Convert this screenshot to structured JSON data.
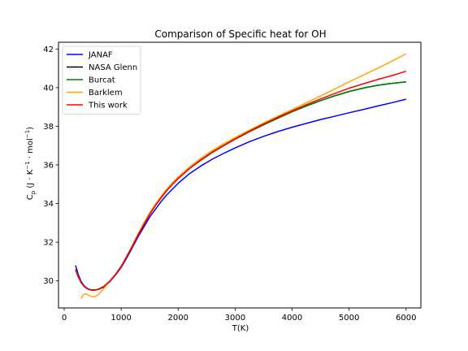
{
  "chart_data": {
    "type": "line",
    "title": "Comparison of Specific heat for OH",
    "xlabel": "T(K)",
    "ylabel": "C_p (J·K⁻¹·mol⁻¹)",
    "ylabel_parts": {
      "main": "C",
      "sub": "p",
      "unit": "(J · K",
      "sup1": "−1",
      "mid": " · mol",
      "sup2": "−1",
      "end": ")"
    },
    "xlim": [
      -100,
      6260
    ],
    "ylim": [
      28.6,
      42.35
    ],
    "xticks": [
      0,
      1000,
      2000,
      3000,
      4000,
      5000,
      6000
    ],
    "yticks": [
      30,
      32,
      34,
      36,
      38,
      40,
      42
    ],
    "grid": false,
    "legend_position": "top-left",
    "series": [
      {
        "name": "JANAF",
        "color": "#0000ff",
        "x": [
          200,
          250,
          300,
          350,
          400,
          450,
          500,
          550,
          600,
          700,
          800,
          900,
          1000,
          1100,
          1200,
          1300,
          1400,
          1500,
          1600,
          1700,
          1800,
          1900,
          2000,
          2200,
          2400,
          2600,
          2800,
          3000,
          3250,
          3500,
          3750,
          4000,
          4250,
          4500,
          4750,
          5000,
          5250,
          5500,
          5750,
          6000
        ],
        "y": [
          30.8,
          30.3,
          29.95,
          29.75,
          29.62,
          29.55,
          29.52,
          29.53,
          29.56,
          29.68,
          29.95,
          30.3,
          30.7,
          31.2,
          31.75,
          32.3,
          32.8,
          33.3,
          33.7,
          34.1,
          34.45,
          34.75,
          35.05,
          35.55,
          35.95,
          36.3,
          36.6,
          36.88,
          37.2,
          37.48,
          37.73,
          37.95,
          38.15,
          38.35,
          38.52,
          38.7,
          38.87,
          39.05,
          39.22,
          39.4
        ]
      },
      {
        "name": "NASA Glenn",
        "color": "#000000",
        "x": [
          200,
          250,
          300,
          350,
          400,
          450,
          500,
          550,
          600,
          700,
          800,
          900,
          1000,
          1100,
          1200,
          1300,
          1400,
          1500,
          1600,
          1700,
          1800,
          1900,
          2000,
          2200,
          2400,
          2600,
          2800,
          3000,
          3250,
          3500,
          3750,
          4000,
          4250,
          4500,
          4750,
          5000,
          5250,
          5500,
          5750,
          6000
        ],
        "y": [
          30.6,
          30.2,
          29.9,
          29.72,
          29.6,
          29.54,
          29.52,
          29.53,
          29.57,
          29.72,
          29.98,
          30.33,
          30.75,
          31.27,
          31.82,
          32.4,
          32.93,
          33.45,
          33.9,
          34.3,
          34.68,
          35.0,
          35.3,
          35.82,
          36.25,
          36.65,
          37.0,
          37.33,
          37.72,
          38.08,
          38.42,
          38.75,
          39.05,
          39.33,
          39.58,
          39.8,
          39.98,
          40.12,
          40.22,
          40.3
        ]
      },
      {
        "name": "Burcat",
        "color": "#008000",
        "x": [
          200,
          250,
          300,
          350,
          400,
          450,
          500,
          550,
          600,
          700,
          800,
          900,
          1000,
          1100,
          1200,
          1300,
          1400,
          1500,
          1600,
          1700,
          1800,
          1900,
          2000,
          2200,
          2400,
          2600,
          2800,
          3000,
          3250,
          3500,
          3750,
          4000,
          4250,
          4500,
          4750,
          5000,
          5250,
          5500,
          5750,
          6000
        ],
        "y": [
          30.6,
          30.2,
          29.9,
          29.72,
          29.6,
          29.54,
          29.52,
          29.53,
          29.57,
          29.72,
          29.98,
          30.33,
          30.75,
          31.27,
          31.82,
          32.4,
          32.93,
          33.45,
          33.9,
          34.3,
          34.68,
          35.0,
          35.3,
          35.82,
          36.25,
          36.65,
          37.0,
          37.33,
          37.72,
          38.08,
          38.42,
          38.75,
          39.05,
          39.33,
          39.58,
          39.8,
          39.98,
          40.12,
          40.22,
          40.3
        ]
      },
      {
        "name": "Barklem",
        "color": "#ffa500",
        "x": [
          300,
          325,
          350,
          375,
          400,
          450,
          500,
          550,
          600,
          650,
          700,
          800,
          900,
          1000,
          1100,
          1200,
          1300,
          1400,
          1500,
          1600,
          1700,
          1800,
          1900,
          2000,
          2200,
          2400,
          2600,
          2800,
          3000,
          3250,
          3500,
          3750,
          4000,
          4250,
          4500,
          4750,
          5000,
          5250,
          5500,
          5750,
          6000
        ],
        "y": [
          29.1,
          29.25,
          29.32,
          29.33,
          29.3,
          29.22,
          29.18,
          29.2,
          29.3,
          29.45,
          29.62,
          29.97,
          30.35,
          30.77,
          31.3,
          31.87,
          32.45,
          33.0,
          33.52,
          33.97,
          34.38,
          34.75,
          35.08,
          35.38,
          35.9,
          36.35,
          36.75,
          37.1,
          37.42,
          37.8,
          38.17,
          38.52,
          38.87,
          39.22,
          39.57,
          39.93,
          40.3,
          40.65,
          41.0,
          41.37,
          41.75
        ]
      },
      {
        "name": "This work",
        "color": "#ff0000",
        "x": [
          200,
          250,
          300,
          350,
          400,
          450,
          500,
          550,
          600,
          700,
          800,
          900,
          1000,
          1100,
          1200,
          1300,
          1400,
          1500,
          1600,
          1700,
          1800,
          1900,
          2000,
          2200,
          2400,
          2600,
          2800,
          3000,
          3250,
          3500,
          3750,
          4000,
          4250,
          4500,
          4750,
          5000,
          5250,
          5500,
          5750,
          6000
        ],
        "y": [
          30.55,
          30.18,
          29.9,
          29.72,
          29.6,
          29.54,
          29.52,
          29.53,
          29.57,
          29.72,
          29.98,
          30.33,
          30.75,
          31.27,
          31.82,
          32.4,
          32.93,
          33.45,
          33.9,
          34.3,
          34.68,
          35.0,
          35.3,
          35.82,
          36.27,
          36.67,
          37.02,
          37.35,
          37.75,
          38.12,
          38.47,
          38.8,
          39.12,
          39.42,
          39.7,
          39.97,
          40.2,
          40.42,
          40.62,
          40.85
        ]
      }
    ]
  }
}
